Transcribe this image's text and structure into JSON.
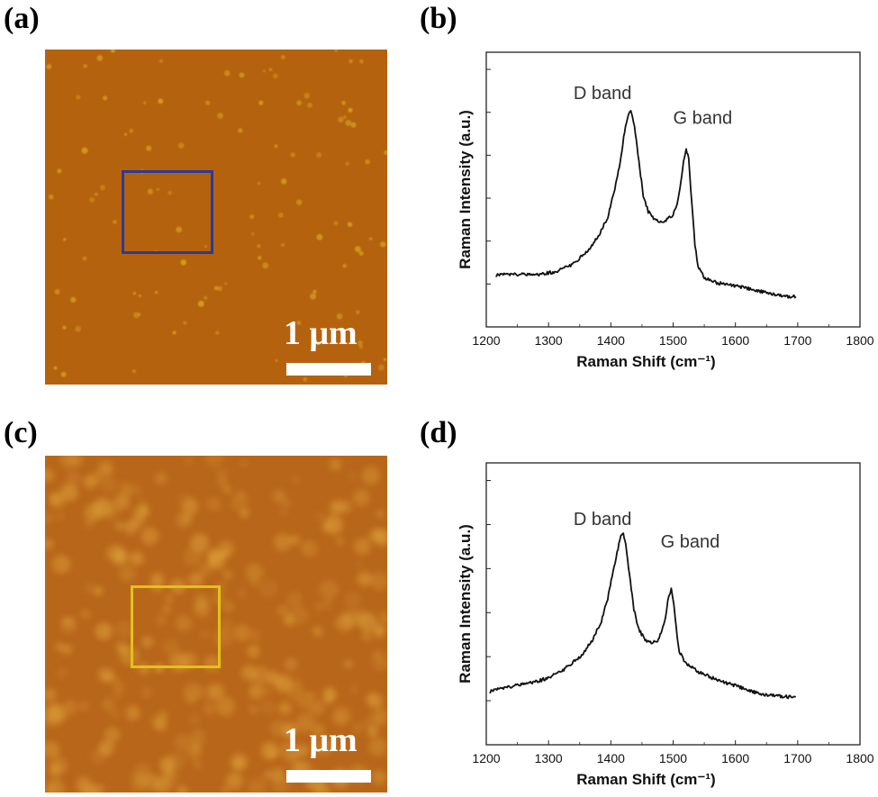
{
  "panels": {
    "a": {
      "label": "(a)",
      "scale_text": "1 μm",
      "roi_color": "#2a3a9a",
      "bg_color": "#b5620f",
      "spot_color": "#d8a020"
    },
    "b": {
      "label": "(b)"
    },
    "c": {
      "label": "(c)",
      "scale_text": "1 μm",
      "roi_color": "#e2c21a",
      "bg_color": "#b8661a",
      "spot_color": "#e0a43c"
    },
    "d": {
      "label": "(d)"
    }
  },
  "chart_data": [
    {
      "id": "b",
      "type": "line",
      "xlabel": "Raman Shift",
      "xlabel_unit": "(cm⁻¹)",
      "ylabel": "Raman Intensity (a.u.)",
      "xlim": [
        1200,
        1800
      ],
      "ylim": [
        0,
        1
      ],
      "xticks": [
        1200,
        1300,
        1400,
        1500,
        1600,
        1700,
        1800
      ],
      "yticks": 6,
      "series": [
        {
          "name": "spectrum-b",
          "x": [
            1215,
            1250,
            1280,
            1310,
            1340,
            1360,
            1380,
            1395,
            1405,
            1415,
            1422,
            1428,
            1432,
            1438,
            1445,
            1452,
            1460,
            1470,
            1480,
            1490,
            1500,
            1508,
            1514,
            1518,
            1521,
            1525,
            1530,
            1535,
            1540,
            1550,
            1570,
            1600,
            1640,
            1680,
            1697
          ],
          "y": [
            0.19,
            0.19,
            0.19,
            0.2,
            0.23,
            0.27,
            0.33,
            0.4,
            0.49,
            0.6,
            0.71,
            0.77,
            0.79,
            0.73,
            0.6,
            0.48,
            0.42,
            0.39,
            0.38,
            0.39,
            0.41,
            0.46,
            0.55,
            0.62,
            0.65,
            0.61,
            0.45,
            0.3,
            0.22,
            0.18,
            0.16,
            0.15,
            0.13,
            0.11,
            0.11
          ]
        }
      ],
      "annotations": [
        {
          "text": "D band",
          "x": 1340,
          "y": 0.83
        },
        {
          "text": "G band",
          "x": 1500,
          "y": 0.74
        }
      ]
    },
    {
      "id": "d",
      "type": "line",
      "xlabel": "Raman Shift",
      "xlabel_unit": "(cm⁻¹)",
      "ylabel": "Raman Intensity (a.u.)",
      "xlim": [
        1200,
        1800
      ],
      "ylim": [
        0,
        1
      ],
      "xticks": [
        1200,
        1300,
        1400,
        1500,
        1600,
        1700,
        1800
      ],
      "yticks": 6,
      "series": [
        {
          "name": "spectrum-d",
          "x": [
            1205,
            1250,
            1290,
            1320,
            1350,
            1370,
            1385,
            1395,
            1402,
            1410,
            1416,
            1420,
            1424,
            1430,
            1437,
            1445,
            1455,
            1465,
            1475,
            1482,
            1488,
            1493,
            1497,
            1501,
            1505,
            1510,
            1520,
            1540,
            1570,
            1600,
            1640,
            1680,
            1697
          ],
          "y": [
            0.19,
            0.21,
            0.23,
            0.26,
            0.31,
            0.37,
            0.44,
            0.52,
            0.6,
            0.68,
            0.74,
            0.75,
            0.71,
            0.6,
            0.48,
            0.41,
            0.37,
            0.36,
            0.37,
            0.4,
            0.46,
            0.53,
            0.55,
            0.5,
            0.41,
            0.33,
            0.29,
            0.26,
            0.23,
            0.21,
            0.18,
            0.17,
            0.17
          ]
        }
      ],
      "annotations": [
        {
          "text": "D band",
          "x": 1340,
          "y": 0.78
        },
        {
          "text": "G band",
          "x": 1480,
          "y": 0.7
        }
      ]
    }
  ]
}
